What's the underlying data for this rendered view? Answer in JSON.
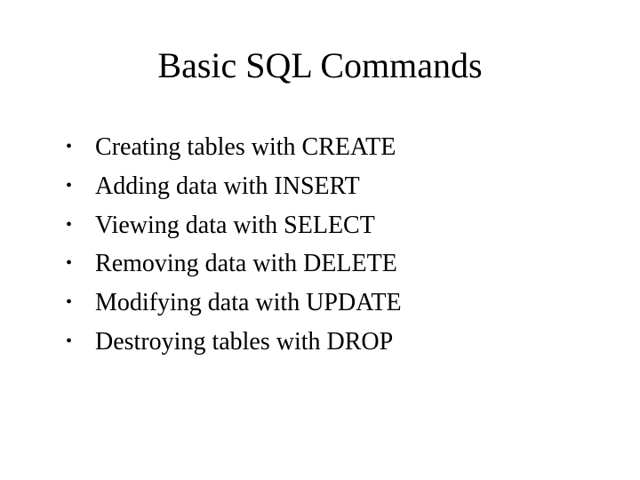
{
  "title": "Basic SQL Commands",
  "title_fontsize": 40,
  "body_fontsize": 28,
  "font_family": "Times New Roman",
  "text_color": "#000000",
  "background_color": "#ffffff",
  "bullets": [
    "Creating tables with CREATE",
    "Adding data with INSERT",
    "Viewing data with SELECT",
    "Removing data with DELETE",
    "Modifying data with UPDATE",
    "Destroying tables with DROP"
  ],
  "bullet_marker": "•"
}
